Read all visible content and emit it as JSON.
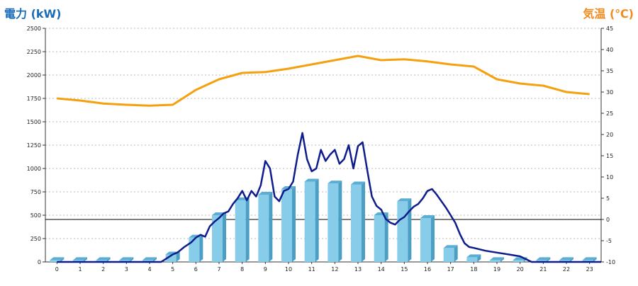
{
  "chart_data": {
    "type": "bar",
    "left_axis": {
      "label": "電力 (kW)",
      "range": [
        0,
        2500
      ],
      "ticks": [
        "0",
        "250",
        "500",
        "750",
        "1000",
        "1250",
        "1500",
        "1750",
        "2000",
        "2250",
        "2500"
      ]
    },
    "right_axis": {
      "label": "気温 (℃)",
      "range": [
        -10,
        45
      ],
      "ticks": [
        "-10",
        "-5",
        "0",
        "5",
        "10",
        "15",
        "20",
        "25",
        "30",
        "35",
        "40",
        "45"
      ]
    },
    "x_axis": {
      "categories": [
        "0",
        "1",
        "2",
        "3",
        "4",
        "5",
        "6",
        "7",
        "8",
        "9",
        "10",
        "11",
        "12",
        "13",
        "14",
        "15",
        "16",
        "17",
        "18",
        "19",
        "20",
        "21",
        "22",
        "23"
      ]
    },
    "grid": true,
    "colors": {
      "bars": "#87cdea",
      "bars_side": "#4b9fc4",
      "bars_top": "#5aaed3",
      "power_line": "#0f1d8c",
      "temp_line": "#f5a00f",
      "grid": "#bbbbbb",
      "zero_line": "#000000"
    },
    "series": [
      {
        "type": "bar",
        "axis": "left",
        "values": [
          20,
          20,
          20,
          20,
          20,
          80,
          260,
          500,
          660,
          720,
          780,
          860,
          840,
          830,
          500,
          650,
          470,
          150,
          50,
          20,
          20,
          20,
          20,
          20
        ]
      },
      {
        "type": "line",
        "axis": "left",
        "x": [
          0,
          0.5,
          1,
          1.5,
          2,
          2.5,
          3,
          3.5,
          4,
          4.5,
          5,
          5.2,
          5.5,
          5.8,
          6,
          6.2,
          6.4,
          6.6,
          6.8,
          7,
          7.2,
          7.4,
          7.6,
          7.8,
          8,
          8.2,
          8.4,
          8.6,
          8.8,
          9,
          9.2,
          9.4,
          9.6,
          9.8,
          10,
          10.2,
          10.4,
          10.6,
          10.8,
          11,
          11.2,
          11.4,
          11.6,
          11.8,
          12,
          12.2,
          12.4,
          12.6,
          12.8,
          13,
          13.2,
          13.4,
          13.6,
          13.8,
          14,
          14.2,
          14.4,
          14.6,
          14.8,
          15,
          15.2,
          15.4,
          15.6,
          15.8,
          16,
          16.2,
          16.4,
          16.6,
          16.8,
          17,
          17.2,
          17.4,
          17.6,
          17.8,
          18,
          18.5,
          19,
          19.5,
          20,
          20.5,
          21,
          21.5,
          22,
          22.5,
          23,
          23.5
        ],
        "values": [
          0,
          0,
          0,
          0,
          0,
          0,
          0,
          0,
          0,
          0,
          80,
          100,
          160,
          210,
          260,
          290,
          270,
          380,
          430,
          470,
          520,
          540,
          620,
          680,
          760,
          660,
          760,
          700,
          820,
          1080,
          1000,
          700,
          650,
          760,
          780,
          860,
          1150,
          1380,
          1100,
          970,
          1000,
          1200,
          1080,
          1150,
          1200,
          1050,
          1100,
          1250,
          1000,
          1240,
          1280,
          980,
          700,
          600,
          560,
          460,
          420,
          400,
          450,
          480,
          540,
          590,
          620,
          680,
          760,
          780,
          720,
          650,
          580,
          500,
          420,
          300,
          200,
          160,
          150,
          120,
          100,
          80,
          60,
          0,
          0,
          0,
          0,
          0,
          0,
          0
        ]
      },
      {
        "type": "line",
        "axis": "right",
        "x": [
          0,
          1,
          2,
          3,
          4,
          5,
          6,
          7,
          8,
          9,
          10,
          11,
          12,
          13,
          14,
          15,
          16,
          17,
          18,
          19,
          20,
          21,
          22,
          23
        ],
        "values": [
          28.5,
          28.0,
          27.3,
          27.0,
          26.8,
          27.0,
          30.5,
          33.0,
          34.5,
          34.7,
          35.5,
          36.5,
          37.5,
          38.5,
          37.5,
          37.7,
          37.2,
          36.5,
          36.0,
          33.0,
          32.0,
          31.5,
          30.0,
          29.5
        ]
      }
    ]
  }
}
